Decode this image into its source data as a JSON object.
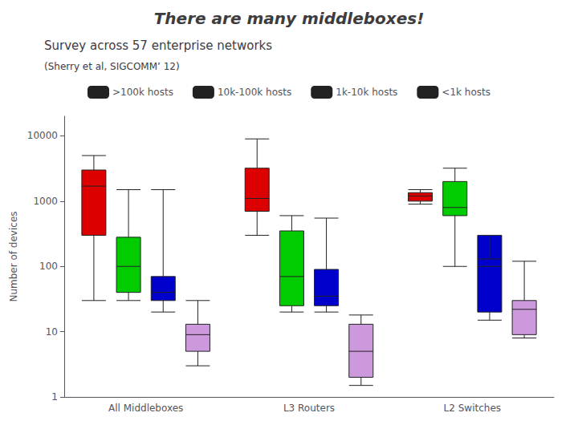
{
  "chart_data": {
    "type": "boxplot",
    "title": "There are many middleboxes!",
    "subtitle": "Survey across 57 enterprise networks",
    "annotations": [
      "(Sherry et al, SIGCOMM’ 12)"
    ],
    "categories": [
      "All Middleboxes",
      "L3 Routers",
      "L2 Switches"
    ],
    "ylabel": "Number of devices",
    "series": [
      {
        "name": ">100k hosts",
        "color": "#dd0000",
        "values": [
          {
            "whislo": 30,
            "q1": 300,
            "med": 1700,
            "q3": 3000,
            "whishi": 5000
          },
          {
            "whislo": 300,
            "q1": 700,
            "med": 1100,
            "q3": 3200,
            "whishi": 9000
          },
          {
            "whislo": 900,
            "q1": 1000,
            "med": 1200,
            "q3": 1350,
            "whishi": 1500
          }
        ]
      },
      {
        "name": "10k-100k hosts",
        "color": "#00cc00",
        "values": [
          {
            "whislo": 30,
            "q1": 40,
            "med": 100,
            "q3": 280,
            "whishi": 1500
          },
          {
            "whislo": 20,
            "q1": 25,
            "med": 70,
            "q3": 350,
            "whishi": 600
          },
          {
            "whislo": 100,
            "q1": 600,
            "med": 800,
            "q3": 2000,
            "whishi": 3200
          }
        ]
      },
      {
        "name": "1k-10k hosts",
        "color": "#0000cc",
        "values": [
          {
            "whislo": 20,
            "q1": 30,
            "med": 40,
            "q3": 70,
            "whishi": 1500
          },
          {
            "whislo": 20,
            "q1": 25,
            "med": 35,
            "q3": 90,
            "whishi": 550
          },
          {
            "whislo": 15,
            "q1": 20,
            "med": 100,
            "q3": 300,
            "whishi": 130
          }
        ]
      },
      {
        "name": "<1k hosts",
        "color": "#cc99dd",
        "values": [
          {
            "whislo": 3,
            "q1": 5,
            "med": 9,
            "q3": 13,
            "whishi": 30
          },
          {
            "whislo": 1.5,
            "q1": 2,
            "med": 5,
            "q3": 13,
            "whishi": 18
          },
          {
            "whislo": 8,
            "q1": 9,
            "med": 22,
            "q3": 30,
            "whishi": 120
          }
        ]
      }
    ],
    "ylim": [
      1,
      20000
    ],
    "yticks": [
      1,
      10,
      100,
      1000,
      10000
    ],
    "log": "y",
    "grid": false,
    "legend": "top"
  }
}
